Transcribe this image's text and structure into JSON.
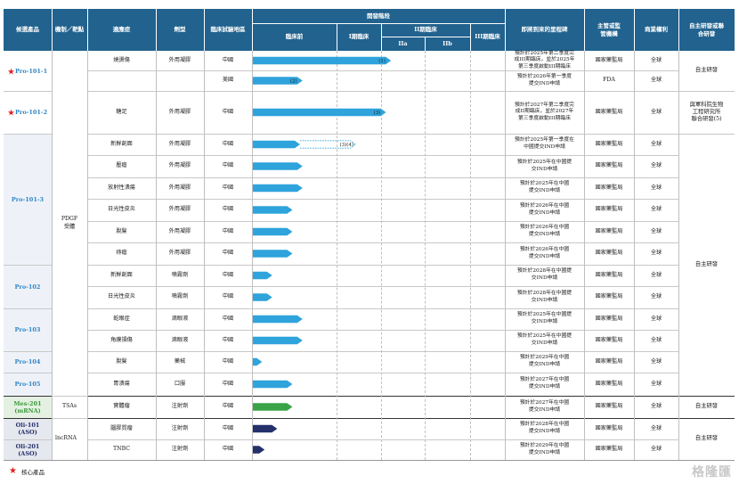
{
  "headers": {
    "product": "候選產品",
    "mechanism": "機制／靶點",
    "indication": "適應症",
    "dosage_form": "劑型",
    "trial_location": "臨床試驗地區",
    "stage_group": "開發階段",
    "preclinical": "臨床前",
    "phase1": "I期臨床",
    "phase2": "II期臨床",
    "phase2a": "IIa",
    "phase2b": "IIb",
    "phase3": "III期臨床",
    "next_milestone": "即將到來的里程碑",
    "regulator": "主管或監管機構",
    "rights": "商業權利",
    "partner": "自主研發或聯合研發"
  },
  "products": [
    {
      "name": "Pro-101-1",
      "star": true,
      "color": "#2f86c8",
      "bg": "#ffffff"
    },
    {
      "name": "Pro-101-2",
      "star": true,
      "color": "#2f86c8",
      "bg": "#ffffff"
    },
    {
      "name": "Pro-101-3",
      "star": false,
      "color": "#2f86c8",
      "bg": "#eef2f8"
    },
    {
      "name": "Pro-102",
      "star": false,
      "color": "#2f86c8",
      "bg": "#eef2f8"
    },
    {
      "name": "Pro-103",
      "star": false,
      "color": "#2f86c8",
      "bg": "#eef2f8"
    },
    {
      "name": "Pro-104",
      "star": false,
      "color": "#2f86c8",
      "bg": "#eef2f8"
    },
    {
      "name": "Pro-105",
      "star": false,
      "color": "#2f86c8",
      "bg": "#eef2f8"
    },
    {
      "name": "Mes-201\n(mRNA)",
      "star": false,
      "color": "#3a9a3a",
      "bg": "#e4f1e2"
    },
    {
      "name": "Oli-101\n(ASO)",
      "star": false,
      "color": "#24306a",
      "bg": "#e6e8ef"
    },
    {
      "name": "Oli-201\n(ASO)",
      "star": false,
      "color": "#24306a",
      "bg": "#e6e8ef"
    }
  ],
  "mechanisms": [
    "PDGF\n受體",
    "TSAs",
    "lncRNA"
  ],
  "rows": [
    {
      "indication": "燒燙傷",
      "form": "外用凝膠",
      "location": "中國",
      "stage": 0.55,
      "color": "#2ea3dc",
      "dashed_to": null,
      "label": "(1)",
      "milestone": "預計於2025年第二季度完\n成III期臨床，並於2025年\n第三季度啟動III期臨床",
      "regulator": "國家藥監局",
      "rights": "全球"
    },
    {
      "indication": "",
      "form": "",
      "location": "美國",
      "stage": 0.2,
      "color": "#2ea3dc",
      "dashed_to": null,
      "label": "(2)",
      "milestone": "預計於2026年第一季度\n提交IND申請",
      "regulator": "FDA",
      "rights": "全球"
    },
    {
      "indication": "糖足",
      "form": "外用凝膠",
      "location": "中國",
      "stage": 0.53,
      "color": "#2ea3dc",
      "dashed_to": null,
      "label": "(3)",
      "milestone": "預計於2027年第二季度完\n成II期臨床，並於2027年\n第三季度啟動III期臨床",
      "regulator": "國家藥監局",
      "rights": "全球"
    },
    {
      "indication": "新鮮創面",
      "form": "外用凝膠",
      "location": "中國",
      "stage": 0.19,
      "color": "#2ea3dc",
      "dashed_to": 0.41,
      "label": "(3)(4)",
      "milestone": "預計於2025年第一季度在\n中國提交IND申請",
      "regulator": "國家藥監局",
      "rights": "全球"
    },
    {
      "indication": "壓瘡",
      "form": "外用凝膠",
      "location": "中國",
      "stage": 0.2,
      "color": "#2ea3dc",
      "dashed_to": null,
      "label": "",
      "milestone": "預計於2025年在中國提\n交IND申請",
      "regulator": "國家藥監局",
      "rights": "全球"
    },
    {
      "indication": "放射性潰瘍",
      "form": "外用凝膠",
      "location": "中國",
      "stage": 0.2,
      "color": "#2ea3dc",
      "dashed_to": null,
      "label": "",
      "milestone": "預計於2025年在中國\n提交IND申請",
      "regulator": "國家藥監局",
      "rights": "全球"
    },
    {
      "indication": "日光性皮炎",
      "form": "外用凝膠",
      "location": "中國",
      "stage": 0.16,
      "color": "#2ea3dc",
      "dashed_to": null,
      "label": "",
      "milestone": "預計於2026年在中國\n提交IND申請",
      "regulator": "國家藥監局",
      "rights": "全球"
    },
    {
      "indication": "脫髮",
      "form": "外用凝膠",
      "location": "中國",
      "stage": 0.16,
      "color": "#2ea3dc",
      "dashed_to": null,
      "label": "",
      "milestone": "預計於2026年在中國\n提交IND申請",
      "regulator": "國家藥監局",
      "rights": "全球"
    },
    {
      "indication": "痔瘡",
      "form": "外用凝膠",
      "location": "中國",
      "stage": 0.16,
      "color": "#2ea3dc",
      "dashed_to": null,
      "label": "",
      "milestone": "預計於2026年在中國\n提交IND申請",
      "regulator": "國家藥監局",
      "rights": "全球"
    },
    {
      "indication": "新鮮創面",
      "form": "噴霧劑",
      "location": "中國",
      "stage": 0.08,
      "color": "#2ea3dc",
      "dashed_to": null,
      "label": "",
      "milestone": "預計於2028年在中國提\n交IND申請",
      "regulator": "國家藥監局",
      "rights": "全球"
    },
    {
      "indication": "日光性皮炎",
      "form": "噴霧劑",
      "location": "中國",
      "stage": 0.08,
      "color": "#2ea3dc",
      "dashed_to": null,
      "label": "",
      "milestone": "預計於2028年在中國提\n交IND申請",
      "regulator": "國家藥監局",
      "rights": "全球"
    },
    {
      "indication": "乾眼症",
      "form": "滴眼液",
      "location": "中國",
      "stage": 0.2,
      "color": "#2ea3dc",
      "dashed_to": null,
      "label": "",
      "milestone": "預計於2025年在中國提\n交IND申請",
      "regulator": "國家藥監局",
      "rights": "全球"
    },
    {
      "indication": "角膜損傷",
      "form": "滴眼液",
      "location": "中國",
      "stage": 0.2,
      "color": "#2ea3dc",
      "dashed_to": null,
      "label": "",
      "milestone": "預計於2025年在中國提\n交IND申請",
      "regulator": "國家藥監局",
      "rights": "全球"
    },
    {
      "indication": "脫髮",
      "form": "藥械",
      "location": "中國",
      "stage": 0.04,
      "color": "#2ea3dc",
      "dashed_to": null,
      "label": "",
      "milestone": "預計於2029年在中國\n提交IND申請",
      "regulator": "國家藥監局",
      "rights": "全球"
    },
    {
      "indication": "胃潰瘍",
      "form": "口服",
      "location": "中國",
      "stage": 0.16,
      "color": "#2ea3dc",
      "dashed_to": null,
      "label": "",
      "milestone": "預計於2027年在中國\n提交IND申請",
      "regulator": "國家藥監局",
      "rights": "全球"
    },
    {
      "indication": "實體瘤",
      "form": "注射劑",
      "location": "中國",
      "stage": 0.16,
      "color": "#3aa346",
      "dashed_to": null,
      "label": "",
      "milestone": "預計於2027年在中國\n提交IND申請",
      "regulator": "國家藥監局",
      "rights": "全球"
    },
    {
      "indication": "腦膠質瘤",
      "form": "注射劑",
      "location": "中國",
      "stage": 0.1,
      "color": "#24306a",
      "dashed_to": null,
      "label": "",
      "milestone": "預計於2028年在中國\n提交IND申請",
      "regulator": "國家藥監局",
      "rights": "全球"
    },
    {
      "indication": "TNBC",
      "form": "注射劑",
      "location": "中國",
      "stage": 0.05,
      "color": "#24306a",
      "dashed_to": null,
      "label": "",
      "milestone": "預計於2029年在中國\n提交IND申請",
      "regulator": "國家藥監局",
      "rights": "全球"
    }
  ],
  "partners": [
    "自主研發",
    "與軍科院生物\n工程研究所\n聯合研發(5)",
    "自主研發",
    "自主研發",
    "自主研發"
  ],
  "legend": {
    "label": "核心產品"
  },
  "watermark": "格隆匯"
}
